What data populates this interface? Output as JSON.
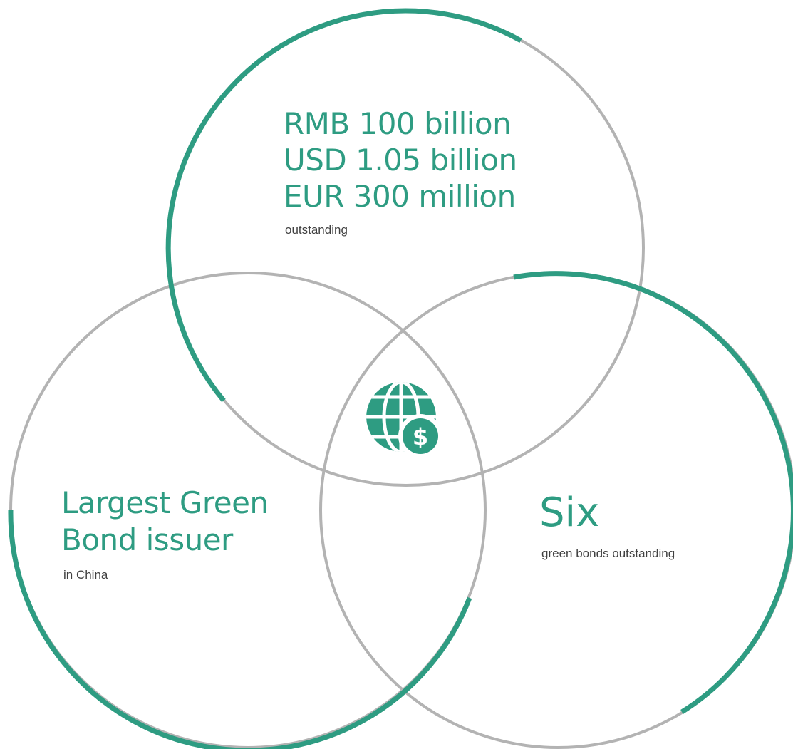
{
  "colors": {
    "accent": "#2e9c82",
    "ring": "#b3b3b3",
    "text": "#404040"
  },
  "center_icon": "globe-dollar-icon",
  "circles": {
    "top": {
      "headline": [
        "RMB 100 billion",
        "USD 1.05 billion",
        "EUR 300 million"
      ],
      "subtext": "outstanding"
    },
    "left": {
      "headline": [
        "Largest Green",
        "Bond issuer"
      ],
      "subtext": "in China"
    },
    "right": {
      "headline": [
        "Six"
      ],
      "subtext": "green bonds outstanding"
    }
  }
}
